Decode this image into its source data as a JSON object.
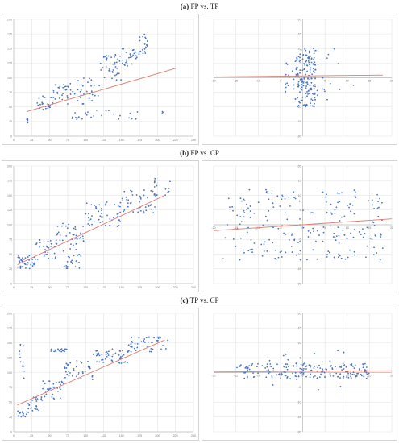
{
  "sections": [
    {
      "letter": "(a)",
      "text": " FP vs. TP"
    },
    {
      "letter": "(b)",
      "text": " FP vs. CP"
    },
    {
      "letter": "(c)",
      "text": " TP vs. CP"
    }
  ],
  "colors": {
    "points": "#4472c4",
    "trend": "#e07a6e",
    "grid": "#e3e3e3"
  },
  "chart_data": [
    {
      "id": "a-left",
      "type": "scatter",
      "title": "",
      "xlabel": "",
      "ylabel": "",
      "xlim": [
        0,
        250
      ],
      "ylim": [
        0,
        200
      ],
      "xticks": [
        "0",
        "25",
        "50",
        "75",
        "100",
        "125",
        "150",
        "175",
        "200",
        "225",
        "250"
      ],
      "yticks": [
        "0",
        "25",
        "50",
        "75",
        "100",
        "125",
        "150",
        "175",
        "200"
      ],
      "grid": true,
      "trend": [
        [
          18,
          42
        ],
        [
          225,
          116
        ]
      ],
      "clusters": [
        {
          "x": [
            18,
            20
          ],
          "y": [
            20,
            30
          ],
          "n": 6
        },
        {
          "x": [
            30,
            55
          ],
          "y": [
            45,
            70
          ],
          "n": 25
        },
        {
          "x": [
            55,
            85
          ],
          "y": [
            55,
            90
          ],
          "n": 30
        },
        {
          "x": [
            85,
            120
          ],
          "y": [
            55,
            100
          ],
          "n": 30
        },
        {
          "x": [
            120,
            150
          ],
          "y": [
            95,
            140
          ],
          "n": 40
        },
        {
          "x": [
            150,
            175
          ],
          "y": [
            120,
            150
          ],
          "n": 30
        },
        {
          "x": [
            175,
            186
          ],
          "y": [
            140,
            175
          ],
          "n": 18
        },
        {
          "x": [
            80,
            180
          ],
          "y": [
            28,
            45
          ],
          "n": 25
        },
        {
          "x": [
            205,
            210
          ],
          "y": [
            38,
            44
          ],
          "n": 3
        }
      ]
    },
    {
      "id": "a-right",
      "type": "scatter",
      "title": "",
      "xlabel": "",
      "ylabel": "",
      "xlim": [
        -20,
        20
      ],
      "ylim": [
        -20,
        20
      ],
      "xticks": [
        "-20",
        "-15",
        "-10",
        "-5",
        "0",
        "5",
        "10",
        "15",
        "20"
      ],
      "yticks": [
        "20",
        "15",
        "10",
        "5",
        "0",
        "-5",
        "-10",
        "-15",
        "-20"
      ],
      "grid": true,
      "trend": [
        [
          -20,
          0.3
        ],
        [
          18,
          0.9
        ]
      ],
      "clusters": [
        {
          "x": [
            -2,
            3
          ],
          "y": [
            -10,
            10
          ],
          "n": 150
        },
        {
          "x": [
            -4,
            6
          ],
          "y": [
            -6,
            6
          ],
          "n": 40
        },
        {
          "x": [
            5,
            12
          ],
          "y": [
            -8,
            12
          ],
          "n": 8
        }
      ]
    },
    {
      "id": "b-left",
      "type": "scatter",
      "title": "",
      "xlabel": "",
      "ylabel": "",
      "xlim": [
        0,
        250
      ],
      "ylim": [
        0,
        200
      ],
      "xticks": [
        "0",
        "25",
        "50",
        "75",
        "100",
        "125",
        "150",
        "175",
        "200",
        "225",
        "250"
      ],
      "yticks": [
        "0",
        "25",
        "50",
        "75",
        "100",
        "125",
        "150",
        "175",
        "200"
      ],
      "grid": true,
      "trend": [
        [
          5,
          32
        ],
        [
          210,
          150
        ]
      ],
      "clusters": [
        {
          "x": [
            5,
            30
          ],
          "y": [
            25,
            50
          ],
          "n": 40
        },
        {
          "x": [
            30,
            60
          ],
          "y": [
            40,
            75
          ],
          "n": 35
        },
        {
          "x": [
            60,
            100
          ],
          "y": [
            55,
            105
          ],
          "n": 40
        },
        {
          "x": [
            100,
            150
          ],
          "y": [
            95,
            140
          ],
          "n": 50
        },
        {
          "x": [
            150,
            200
          ],
          "y": [
            120,
            160
          ],
          "n": 45
        },
        {
          "x": [
            195,
            220
          ],
          "y": [
            150,
            180
          ],
          "n": 15
        },
        {
          "x": [
            70,
            95
          ],
          "y": [
            25,
            50
          ],
          "n": 20
        }
      ]
    },
    {
      "id": "b-right",
      "type": "scatter",
      "title": "",
      "xlabel": "",
      "ylabel": "",
      "xlim": [
        -20,
        20
      ],
      "ylim": [
        -20,
        20
      ],
      "xticks": [
        "-20",
        "-15",
        "-10",
        "-5",
        "0",
        "5",
        "10",
        "15",
        "20"
      ],
      "yticks": [
        "20",
        "15",
        "10",
        "5",
        "0",
        "-5",
        "-10",
        "-15",
        "-20"
      ],
      "grid": true,
      "trend": [
        [
          -20,
          -2
        ],
        [
          20,
          2
        ]
      ],
      "clusters": [
        {
          "x": [
            -18,
            18
          ],
          "y": [
            -12,
            12
          ],
          "n": 220
        }
      ]
    },
    {
      "id": "c-left",
      "type": "scatter",
      "title": "",
      "xlabel": "",
      "ylabel": "",
      "xlim": [
        0,
        250
      ],
      "ylim": [
        0,
        200
      ],
      "xticks": [
        "0",
        "25",
        "50",
        "75",
        "100",
        "125",
        "150",
        "175",
        "200",
        "225",
        "250"
      ],
      "yticks": [
        "0",
        "25",
        "50",
        "75",
        "100",
        "125",
        "150",
        "175",
        "200"
      ],
      "grid": true,
      "trend": [
        [
          5,
          45
        ],
        [
          210,
          155
        ]
      ],
      "clusters": [
        {
          "x": [
            5,
            20
          ],
          "y": [
            25,
            35
          ],
          "n": 15
        },
        {
          "x": [
            20,
            40
          ],
          "y": [
            30,
            60
          ],
          "n": 25
        },
        {
          "x": [
            40,
            70
          ],
          "y": [
            55,
            90
          ],
          "n": 35
        },
        {
          "x": [
            70,
            110
          ],
          "y": [
            85,
            120
          ],
          "n": 40
        },
        {
          "x": [
            110,
            160
          ],
          "y": [
            115,
            140
          ],
          "n": 50
        },
        {
          "x": [
            160,
            215
          ],
          "y": [
            135,
            160
          ],
          "n": 45
        },
        {
          "x": [
            50,
            75
          ],
          "y": [
            135,
            140
          ],
          "n": 20
        },
        {
          "x": [
            8,
            15
          ],
          "y": [
            80,
            150
          ],
          "n": 12
        }
      ]
    },
    {
      "id": "c-right",
      "type": "scatter",
      "title": "",
      "xlabel": "",
      "ylabel": "",
      "xlim": [
        -20,
        20
      ],
      "ylim": [
        -20,
        20
      ],
      "xticks": [
        "-20",
        "-15",
        "-10",
        "-5",
        "0",
        "5",
        "10",
        "15",
        "20"
      ],
      "yticks": [
        "20",
        "15",
        "10",
        "5",
        "0",
        "-5",
        "-10",
        "-15",
        "-20"
      ],
      "grid": true,
      "trend": [
        [
          -20,
          0.2
        ],
        [
          20,
          0.6
        ]
      ],
      "clusters": [
        {
          "x": [
            -15,
            15
          ],
          "y": [
            -2,
            3
          ],
          "n": 180
        },
        {
          "x": [
            -8,
            10
          ],
          "y": [
            -6,
            8
          ],
          "n": 30
        }
      ]
    }
  ]
}
